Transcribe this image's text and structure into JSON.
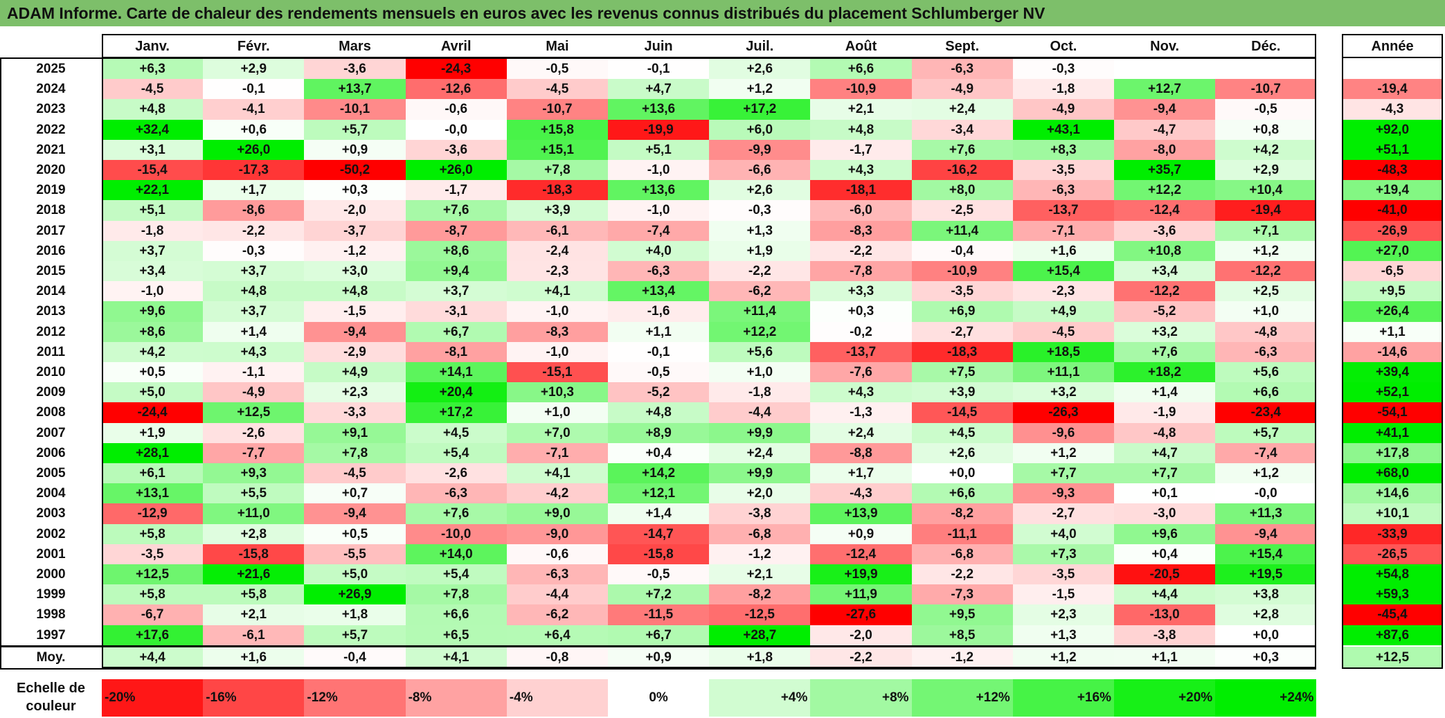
{
  "title": "ADAM Informe. Carte de chaleur des rendements mensuels en euros avec les revenus connus distribués du placement Schlumberger NV",
  "chart_data": {
    "type": "heatmap",
    "months": [
      "Janv.",
      "Févr.",
      "Mars",
      "Avril",
      "Mai",
      "Juin",
      "Juil.",
      "Août",
      "Sept.",
      "Oct.",
      "Nov.",
      "Déc."
    ],
    "year_header": "Année",
    "rows": [
      {
        "year": "2025",
        "values": [
          "+6,3",
          "+2,9",
          "-3,6",
          "-24,3",
          "-0,5",
          "-0,1",
          "+2,6",
          "+6,6",
          "-6,3",
          "-0,3",
          "",
          ""
        ],
        "annual": ""
      },
      {
        "year": "2024",
        "values": [
          "-4,5",
          "-0,1",
          "+13,7",
          "-12,6",
          "-4,5",
          "+4,7",
          "+1,2",
          "-10,9",
          "-4,9",
          "-1,8",
          "+12,7",
          "-10,7"
        ],
        "annual": "-19,4"
      },
      {
        "year": "2023",
        "values": [
          "+4,8",
          "-4,1",
          "-10,1",
          "-0,6",
          "-10,7",
          "+13,6",
          "+17,2",
          "+2,1",
          "+2,4",
          "-4,9",
          "-9,4",
          "-0,5"
        ],
        "annual": "-4,3"
      },
      {
        "year": "2022",
        "values": [
          "+32,4",
          "+0,6",
          "+5,7",
          "-0,0",
          "+15,8",
          "-19,9",
          "+6,0",
          "+4,8",
          "-3,4",
          "+43,1",
          "-4,7",
          "+0,8"
        ],
        "annual": "+92,0"
      },
      {
        "year": "2021",
        "values": [
          "+3,1",
          "+26,0",
          "+0,9",
          "-3,6",
          "+15,1",
          "+5,1",
          "-9,9",
          "-1,7",
          "+7,6",
          "+8,3",
          "-8,0",
          "+4,2"
        ],
        "annual": "+51,1"
      },
      {
        "year": "2020",
        "values": [
          "-15,4",
          "-17,3",
          "-50,2",
          "+26,0",
          "+7,8",
          "-1,0",
          "-6,6",
          "+4,3",
          "-16,2",
          "-3,5",
          "+35,7",
          "+2,9"
        ],
        "annual": "-48,3"
      },
      {
        "year": "2019",
        "values": [
          "+22,1",
          "+1,7",
          "+0,3",
          "-1,7",
          "-18,3",
          "+13,6",
          "+2,6",
          "-18,1",
          "+8,0",
          "-6,3",
          "+12,2",
          "+10,4"
        ],
        "annual": "+19,4"
      },
      {
        "year": "2018",
        "values": [
          "+5,1",
          "-8,6",
          "-2,0",
          "+7,6",
          "+3,9",
          "-1,0",
          "-0,3",
          "-6,0",
          "-2,5",
          "-13,7",
          "-12,4",
          "-19,4"
        ],
        "annual": "-41,0"
      },
      {
        "year": "2017",
        "values": [
          "-1,8",
          "-2,2",
          "-3,7",
          "-8,7",
          "-6,1",
          "-7,4",
          "+1,3",
          "-8,3",
          "+11,4",
          "-7,1",
          "-3,6",
          "+7,1"
        ],
        "annual": "-26,9"
      },
      {
        "year": "2016",
        "values": [
          "+3,7",
          "-0,3",
          "-1,2",
          "+8,6",
          "-2,4",
          "+4,0",
          "+1,9",
          "-2,2",
          "-0,4",
          "+1,6",
          "+10,8",
          "+1,2"
        ],
        "annual": "+27,0"
      },
      {
        "year": "2015",
        "values": [
          "+3,4",
          "+3,7",
          "+3,0",
          "+9,4",
          "-2,3",
          "-6,3",
          "-2,2",
          "-7,8",
          "-10,9",
          "+15,4",
          "+3,4",
          "-12,2"
        ],
        "annual": "-6,5"
      },
      {
        "year": "2014",
        "values": [
          "-1,0",
          "+4,8",
          "+4,8",
          "+3,7",
          "+4,1",
          "+13,4",
          "-6,2",
          "+3,3",
          "-3,5",
          "-2,3",
          "-12,2",
          "+2,5"
        ],
        "annual": "+9,5"
      },
      {
        "year": "2013",
        "values": [
          "+9,6",
          "+3,7",
          "-1,5",
          "-3,1",
          "-1,0",
          "-1,6",
          "+11,4",
          "+0,3",
          "+6,9",
          "+4,9",
          "-5,2",
          "+1,0"
        ],
        "annual": "+26,4"
      },
      {
        "year": "2012",
        "values": [
          "+8,6",
          "+1,4",
          "-9,4",
          "+6,7",
          "-8,3",
          "+1,1",
          "+12,2",
          "-0,2",
          "-2,7",
          "-4,5",
          "+3,2",
          "-4,8"
        ],
        "annual": "+1,1"
      },
      {
        "year": "2011",
        "values": [
          "+4,2",
          "+4,3",
          "-2,9",
          "-8,1",
          "-1,0",
          "-0,1",
          "+5,6",
          "-13,7",
          "-18,3",
          "+18,5",
          "+7,6",
          "-6,3"
        ],
        "annual": "-14,6"
      },
      {
        "year": "2010",
        "values": [
          "+0,5",
          "-1,1",
          "+4,9",
          "+14,1",
          "-15,1",
          "-0,5",
          "+1,0",
          "-7,6",
          "+7,5",
          "+11,1",
          "+18,2",
          "+5,6"
        ],
        "annual": "+39,4"
      },
      {
        "year": "2009",
        "values": [
          "+5,0",
          "-4,9",
          "+2,3",
          "+20,4",
          "+10,3",
          "-5,2",
          "-1,8",
          "+4,3",
          "+3,9",
          "+3,2",
          "+1,4",
          "+6,6"
        ],
        "annual": "+52,1"
      },
      {
        "year": "2008",
        "values": [
          "-24,4",
          "+12,5",
          "-3,3",
          "+17,2",
          "+1,0",
          "+4,8",
          "-4,4",
          "-1,3",
          "-14,5",
          "-26,3",
          "-1,9",
          "-23,4"
        ],
        "annual": "-54,1"
      },
      {
        "year": "2007",
        "values": [
          "+1,9",
          "-2,6",
          "+9,1",
          "+4,5",
          "+7,0",
          "+8,9",
          "+9,9",
          "+2,4",
          "+4,5",
          "-9,6",
          "-4,8",
          "+5,7"
        ],
        "annual": "+41,1"
      },
      {
        "year": "2006",
        "values": [
          "+28,1",
          "-7,7",
          "+7,8",
          "+5,4",
          "-7,1",
          "+0,4",
          "+2,4",
          "-8,8",
          "+2,6",
          "+1,2",
          "+4,7",
          "-7,4"
        ],
        "annual": "+17,8"
      },
      {
        "year": "2005",
        "values": [
          "+6,1",
          "+9,3",
          "-4,5",
          "-2,6",
          "+4,1",
          "+14,2",
          "+9,9",
          "+1,7",
          "+0,0",
          "+7,7",
          "+7,7",
          "+1,2"
        ],
        "annual": "+68,0"
      },
      {
        "year": "2004",
        "values": [
          "+13,1",
          "+5,5",
          "+0,7",
          "-6,3",
          "-4,2",
          "+12,1",
          "+2,0",
          "-4,3",
          "+6,6",
          "-9,3",
          "+0,1",
          "-0,0"
        ],
        "annual": "+14,6"
      },
      {
        "year": "2003",
        "values": [
          "-12,9",
          "+11,0",
          "-9,4",
          "+7,6",
          "+9,0",
          "+1,4",
          "-3,8",
          "+13,9",
          "-8,2",
          "-2,7",
          "-3,0",
          "+11,3"
        ],
        "annual": "+10,1"
      },
      {
        "year": "2002",
        "values": [
          "+5,8",
          "+2,8",
          "+0,5",
          "-10,0",
          "-9,0",
          "-14,7",
          "-6,8",
          "+0,9",
          "-11,1",
          "+4,0",
          "+9,6",
          "-9,4"
        ],
        "annual": "-33,9"
      },
      {
        "year": "2001",
        "values": [
          "-3,5",
          "-15,8",
          "-5,5",
          "+14,0",
          "-0,6",
          "-15,8",
          "-1,2",
          "-12,4",
          "-6,8",
          "+7,3",
          "+0,4",
          "+15,4"
        ],
        "annual": "-26,5"
      },
      {
        "year": "2000",
        "values": [
          "+12,5",
          "+21,6",
          "+5,0",
          "+5,4",
          "-6,3",
          "-0,5",
          "+2,1",
          "+19,9",
          "-2,2",
          "-3,5",
          "-20,5",
          "+19,5"
        ],
        "annual": "+54,8"
      },
      {
        "year": "1999",
        "values": [
          "+5,8",
          "+5,8",
          "+26,9",
          "+7,8",
          "-4,4",
          "+7,2",
          "-8,2",
          "+11,9",
          "-7,3",
          "-1,5",
          "+4,4",
          "+3,8"
        ],
        "annual": "+59,3"
      },
      {
        "year": "1998",
        "values": [
          "-6,7",
          "+2,1",
          "+1,8",
          "+6,6",
          "-6,2",
          "-11,5",
          "-12,5",
          "-27,6",
          "+9,5",
          "+2,3",
          "-13,0",
          "+2,8"
        ],
        "annual": "-45,4"
      },
      {
        "year": "1997",
        "values": [
          "+17,6",
          "-6,1",
          "+5,7",
          "+6,5",
          "+6,4",
          "+6,7",
          "+28,7",
          "-2,0",
          "+8,5",
          "+1,3",
          "-3,8",
          "+0,0"
        ],
        "annual": "+87,6"
      }
    ],
    "average": {
      "label": "Moy.",
      "values": [
        "+4,4",
        "+1,6",
        "-0,4",
        "+4,1",
        "-0,8",
        "+0,9",
        "+1,8",
        "-2,2",
        "-1,2",
        "+1,2",
        "+1,1",
        "+0,3"
      ],
      "annual": "+12,5"
    },
    "scale": {
      "label_line1": "Echelle de",
      "label_line2": "couleur",
      "items": [
        {
          "label": "-20%",
          "value": -20
        },
        {
          "label": "-16%",
          "value": -16
        },
        {
          "label": "-12%",
          "value": -12
        },
        {
          "label": "-8%",
          "value": -8
        },
        {
          "label": "-4%",
          "value": -4
        },
        {
          "label": "0%",
          "value": 0
        },
        {
          "label": "+4%",
          "value": 4
        },
        {
          "label": "+8%",
          "value": 8
        },
        {
          "label": "+12%",
          "value": 12
        },
        {
          "label": "+16%",
          "value": 16
        },
        {
          "label": "+20%",
          "value": 20
        },
        {
          "label": "+24%",
          "value": 24
        }
      ]
    },
    "colors": {
      "negative_max": "#ff0000",
      "neutral": "#ffffff",
      "positive_max": "#00ee00",
      "title_bar": "#7dbf6a"
    }
  }
}
